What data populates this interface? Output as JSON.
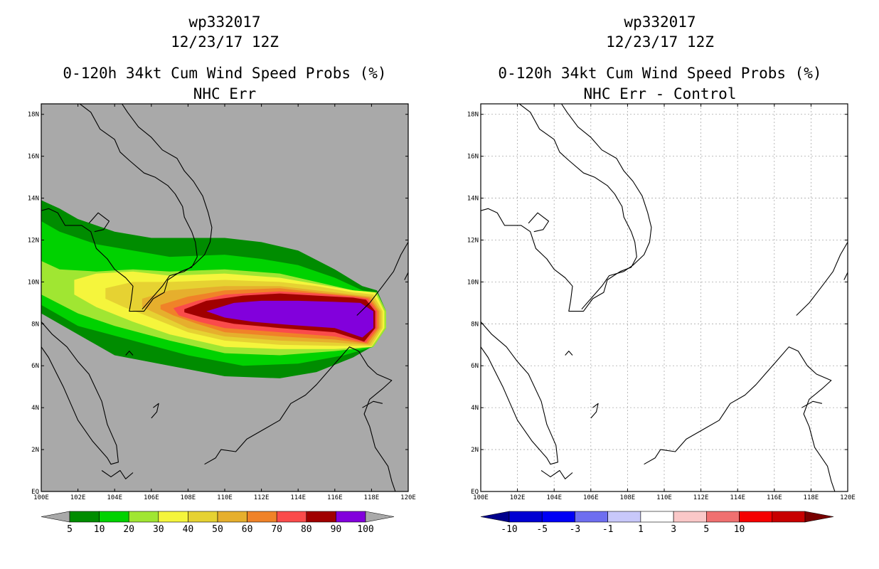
{
  "chart_data": [
    {
      "type": "heatmap",
      "title_lines": [
        "wp332017",
        "12/23/17 12Z",
        "0-120h 34kt Cum Wind Speed Probs (%)",
        "NHC Err"
      ],
      "xlabel": "",
      "ylabel": "",
      "xlim": [
        100,
        120
      ],
      "ylim": [
        0,
        18.5
      ],
      "x_ticks": [
        100,
        102,
        104,
        106,
        108,
        110,
        112,
        114,
        116,
        118,
        120
      ],
      "x_tick_labels": [
        "100E",
        "102E",
        "104E",
        "106E",
        "108E",
        "110E",
        "112E",
        "114E",
        "116E",
        "118E",
        "120E"
      ],
      "y_ticks": [
        0,
        2,
        4,
        6,
        8,
        10,
        12,
        14,
        16,
        18
      ],
      "y_tick_labels": [
        "EQ",
        "2N",
        "4N",
        "6N",
        "8N",
        "10N",
        "12N",
        "14N",
        "16N",
        "18N"
      ],
      "grid": false,
      "background_color": "#a9a9a9",
      "colorbar": {
        "labels": [
          "5",
          "10",
          "20",
          "30",
          "40",
          "50",
          "60",
          "70",
          "80",
          "90",
          "100"
        ],
        "under_color": "#a9a9a9",
        "over_color": "#a9a9a9",
        "colors": [
          "#008c00",
          "#00d200",
          "#a0e632",
          "#f5f53c",
          "#e6d232",
          "#e6af2d",
          "#f08228",
          "#fa4b4b",
          "#a00000",
          "#8200dc"
        ]
      },
      "contours": [
        {
          "level": 5,
          "color": "#008c00",
          "points": [
            [
              100,
              13.9
            ],
            [
              101,
              13.5
            ],
            [
              102,
              13
            ],
            [
              104,
              12.4
            ],
            [
              106,
              12.1
            ],
            [
              110,
              12.1
            ],
            [
              112,
              11.9
            ],
            [
              114,
              11.5
            ],
            [
              116,
              10.6
            ],
            [
              117.5,
              9.8
            ],
            [
              118.3,
              9.6
            ],
            [
              118.8,
              8.6
            ],
            [
              118.8,
              7.8
            ],
            [
              118,
              6.9
            ],
            [
              117,
              6.4
            ],
            [
              115,
              5.7
            ],
            [
              113,
              5.4
            ],
            [
              110,
              5.5
            ],
            [
              107,
              6.0
            ],
            [
              104,
              6.5
            ],
            [
              102,
              7.5
            ],
            [
              100,
              8.5
            ]
          ]
        },
        {
          "level": 10,
          "color": "#00d200",
          "points": [
            [
              100,
              12.9
            ],
            [
              101,
              12.4
            ],
            [
              103,
              11.8
            ],
            [
              105,
              11.5
            ],
            [
              107,
              11.2
            ],
            [
              110,
              11.3
            ],
            [
              112,
              11.1
            ],
            [
              114,
              10.8
            ],
            [
              116,
              10.2
            ],
            [
              117.5,
              9.6
            ],
            [
              118.3,
              9.5
            ],
            [
              118.8,
              8.6
            ],
            [
              118.8,
              7.8
            ],
            [
              118.1,
              6.9
            ],
            [
              116.5,
              6.5
            ],
            [
              114,
              6.1
            ],
            [
              111,
              6.0
            ],
            [
              108,
              6.5
            ],
            [
              105,
              7.2
            ],
            [
              102,
              7.9
            ],
            [
              100,
              8.9
            ]
          ]
        },
        {
          "level": 20,
          "color": "#a0e632",
          "points": [
            [
              100,
              11
            ],
            [
              101,
              10.6
            ],
            [
              103,
              10.5
            ],
            [
              105,
              10.6
            ],
            [
              107,
              10.5
            ],
            [
              110,
              10.6
            ],
            [
              113,
              10.4
            ],
            [
              115,
              10
            ],
            [
              117,
              9.6
            ],
            [
              118.3,
              9.5
            ],
            [
              118.8,
              8.6
            ],
            [
              118.8,
              7.8
            ],
            [
              118.1,
              6.9
            ],
            [
              116,
              6.7
            ],
            [
              113,
              6.5
            ],
            [
              110,
              6.6
            ],
            [
              107,
              7.2
            ],
            [
              104,
              7.9
            ],
            [
              102,
              8.5
            ],
            [
              100,
              9.4
            ]
          ]
        },
        {
          "level": 30,
          "color": "#f5f53c",
          "points": [
            [
              101.8,
              10.1
            ],
            [
              103,
              10.4
            ],
            [
              105,
              10.5
            ],
            [
              107,
              10.3
            ],
            [
              110,
              10.4
            ],
            [
              113,
              10.2
            ],
            [
              115,
              9.9
            ],
            [
              117,
              9.6
            ],
            [
              118.2,
              9.5
            ],
            [
              118.7,
              8.6
            ],
            [
              118.7,
              7.8
            ],
            [
              118,
              6.9
            ],
            [
              116,
              6.8
            ],
            [
              113,
              6.8
            ],
            [
              110,
              6.9
            ],
            [
              107,
              7.5
            ],
            [
              105,
              8.1
            ],
            [
              103,
              8.8
            ],
            [
              101.8,
              9.4
            ]
          ]
        },
        {
          "level": 40,
          "color": "#e6d232",
          "points": [
            [
              103.5,
              9.7
            ],
            [
              105,
              10
            ],
            [
              107,
              10.0
            ],
            [
              110,
              10.1
            ],
            [
              113,
              10.0
            ],
            [
              115,
              9.8
            ],
            [
              117,
              9.5
            ],
            [
              118.1,
              9.4
            ],
            [
              118.6,
              8.6
            ],
            [
              118.6,
              7.8
            ],
            [
              118,
              6.95
            ],
            [
              116,
              6.95
            ],
            [
              113,
              7.0
            ],
            [
              110,
              7.2
            ],
            [
              108,
              7.6
            ],
            [
              106,
              8.3
            ],
            [
              104.5,
              8.8
            ],
            [
              103.5,
              9.2
            ]
          ]
        },
        {
          "level": 50,
          "color": "#e6af2d",
          "points": [
            [
              105.5,
              9.2
            ],
            [
              107,
              9.6
            ],
            [
              110,
              9.8
            ],
            [
              113,
              9.8
            ],
            [
              115,
              9.6
            ],
            [
              117,
              9.4
            ],
            [
              118,
              9.3
            ],
            [
              118.5,
              8.6
            ],
            [
              118.5,
              7.8
            ],
            [
              117.9,
              7.0
            ],
            [
              116,
              7.1
            ],
            [
              113,
              7.2
            ],
            [
              110,
              7.4
            ],
            [
              108,
              7.8
            ],
            [
              106.5,
              8.4
            ],
            [
              105.5,
              8.8
            ]
          ]
        },
        {
          "level": 60,
          "color": "#f08228",
          "points": [
            [
              106.5,
              8.9
            ],
            [
              108,
              9.3
            ],
            [
              110,
              9.6
            ],
            [
              113,
              9.7
            ],
            [
              115,
              9.5
            ],
            [
              117,
              9.35
            ],
            [
              117.9,
              9.25
            ],
            [
              118.4,
              8.6
            ],
            [
              118.4,
              7.8
            ],
            [
              117.8,
              7.05
            ],
            [
              116,
              7.25
            ],
            [
              113,
              7.4
            ],
            [
              110,
              7.6
            ],
            [
              108.5,
              8.0
            ],
            [
              107.2,
              8.4
            ],
            [
              106.5,
              8.7
            ]
          ]
        },
        {
          "level": 70,
          "color": "#fa4b4b",
          "points": [
            [
              107.2,
              8.75
            ],
            [
              108.5,
              9.1
            ],
            [
              110,
              9.4
            ],
            [
              113,
              9.55
            ],
            [
              115,
              9.45
            ],
            [
              117,
              9.3
            ],
            [
              117.8,
              9.2
            ],
            [
              118.3,
              8.6
            ],
            [
              118.3,
              7.8
            ],
            [
              117.7,
              7.1
            ],
            [
              116,
              7.4
            ],
            [
              113,
              7.6
            ],
            [
              110,
              7.8
            ],
            [
              108.6,
              8.1
            ],
            [
              107.5,
              8.4
            ]
          ]
        },
        {
          "level": 80,
          "color": "#a00000",
          "points": [
            [
              107.8,
              8.7
            ],
            [
              109,
              9.1
            ],
            [
              111,
              9.35
            ],
            [
              113,
              9.45
            ],
            [
              115,
              9.35
            ],
            [
              117,
              9.25
            ],
            [
              117.7,
              9.15
            ],
            [
              118.2,
              8.6
            ],
            [
              118.2,
              7.8
            ],
            [
              117.6,
              7.15
            ],
            [
              116,
              7.6
            ],
            [
              113,
              7.8
            ],
            [
              110.5,
              8.0
            ],
            [
              108.8,
              8.3
            ],
            [
              107.8,
              8.55
            ]
          ]
        },
        {
          "level": 90,
          "color": "#8200dc",
          "points": [
            [
              109,
              8.6
            ],
            [
              110.5,
              9.0
            ],
            [
              112,
              9.1
            ],
            [
              114,
              9.1
            ],
            [
              116,
              9.05
            ],
            [
              117.4,
              9.0
            ],
            [
              118.1,
              8.6
            ],
            [
              118.1,
              7.8
            ],
            [
              117.5,
              7.35
            ],
            [
              116,
              7.8
            ],
            [
              113.5,
              7.95
            ],
            [
              111.5,
              8.1
            ],
            [
              110,
              8.3
            ]
          ]
        }
      ]
    },
    {
      "type": "heatmap",
      "title_lines": [
        "wp332017",
        "12/23/17 12Z",
        "0-120h 34kt Cum Wind Speed Probs (%)",
        "NHC Err - Control"
      ],
      "xlabel": "",
      "ylabel": "",
      "xlim": [
        100,
        120
      ],
      "ylim": [
        0,
        18.5
      ],
      "x_ticks": [
        100,
        102,
        104,
        106,
        108,
        110,
        112,
        114,
        116,
        118,
        120
      ],
      "x_tick_labels": [
        "100E",
        "102E",
        "104E",
        "106E",
        "108E",
        "110E",
        "112E",
        "114E",
        "116E",
        "118E",
        "120E"
      ],
      "y_ticks": [
        0,
        2,
        4,
        6,
        8,
        10,
        12,
        14,
        16,
        18
      ],
      "y_tick_labels": [
        "EQ",
        "2N",
        "4N",
        "6N",
        "8N",
        "10N",
        "12N",
        "14N",
        "16N",
        "18N"
      ],
      "grid": true,
      "background_color": "#ffffff",
      "colorbar": {
        "labels": [
          "-10",
          "-5",
          "-3",
          "-1",
          "1",
          "3",
          "5",
          "10"
        ],
        "under_color": "#00008c",
        "over_color": "#780000",
        "colors": [
          "#0000d2",
          "#0000f5",
          "#6e6ef0",
          "#c8c8fa",
          "#ffffff",
          "#fac8c8",
          "#f07070",
          "#f50000",
          "#c80000"
        ]
      },
      "contours": []
    }
  ]
}
